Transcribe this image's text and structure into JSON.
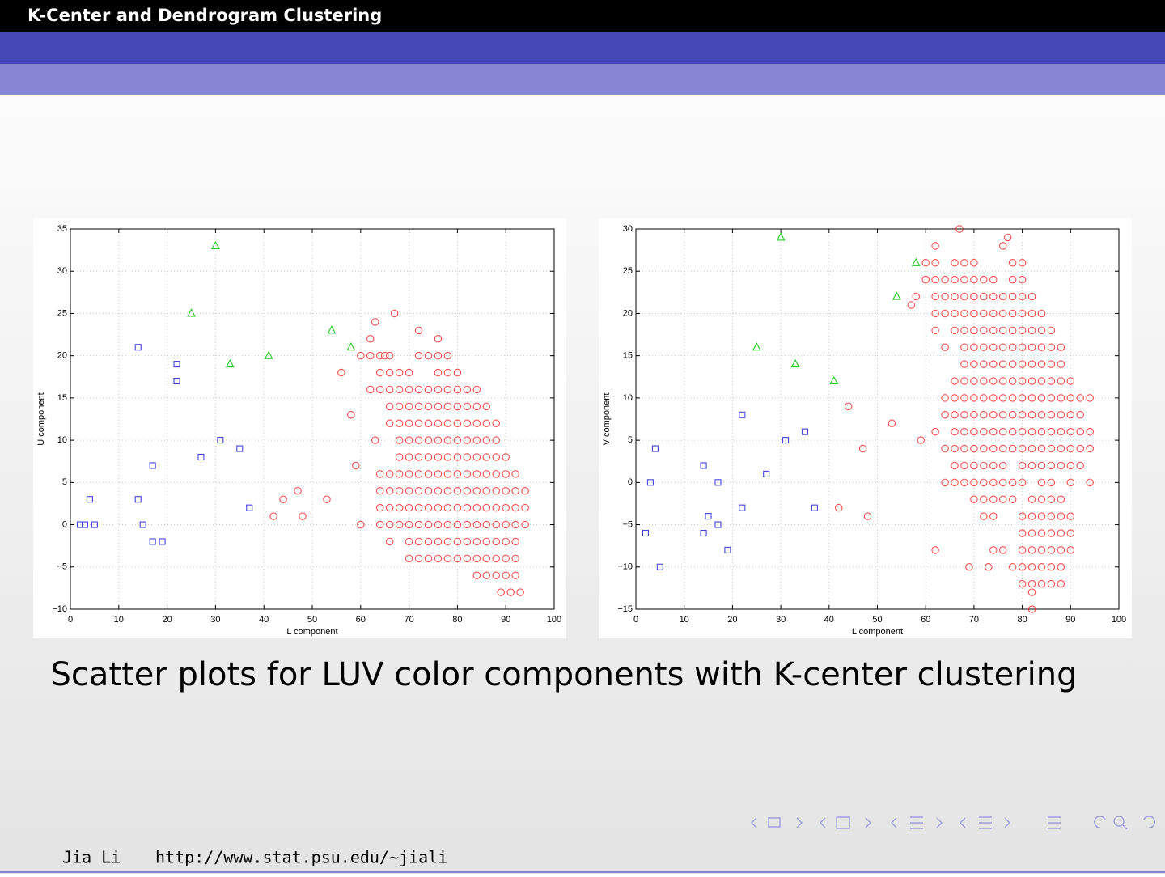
{
  "header": {
    "title": "K-Center and Dendrogram Clustering"
  },
  "chart_data": [
    {
      "type": "scatter",
      "xlabel": "L component",
      "ylabel": "U component",
      "xlim": [
        0,
        100
      ],
      "ylim": [
        -10,
        35
      ],
      "xticks": [
        0,
        10,
        20,
        30,
        40,
        50,
        60,
        70,
        80,
        90,
        100
      ],
      "yticks": [
        {
          "value": -10,
          "label": "−10"
        },
        {
          "value": -5,
          "label": "−5"
        },
        0,
        5,
        10,
        15,
        20,
        25,
        30,
        35
      ],
      "grid": true,
      "series": [
        {
          "color": "#ff2020",
          "marker": "circle",
          "x": [
            62,
            76,
            60,
            62,
            64,
            66,
            72,
            74,
            76,
            78,
            64,
            66,
            68,
            70,
            76,
            78,
            80,
            62,
            64,
            66,
            68,
            70,
            72,
            74,
            76,
            78,
            80,
            82,
            84,
            66,
            68,
            70,
            72,
            74,
            76,
            78,
            80,
            82,
            84,
            86,
            66,
            68,
            70,
            72,
            74,
            76,
            78,
            80,
            82,
            84,
            86,
            88,
            68,
            70,
            72,
            74,
            76,
            78,
            80,
            82,
            84,
            86,
            88,
            68,
            70,
            72,
            74,
            76,
            78,
            80,
            82,
            84,
            86,
            88,
            90,
            64,
            66,
            68,
            70,
            72,
            74,
            76,
            78,
            80,
            82,
            84,
            86,
            88,
            90,
            92,
            64,
            66,
            68,
            70,
            72,
            74,
            76,
            78,
            80,
            82,
            84,
            86,
            88,
            90,
            92,
            94,
            64,
            66,
            68,
            70,
            72,
            74,
            76,
            78,
            80,
            82,
            84,
            86,
            88,
            90,
            92,
            94,
            60,
            64,
            66,
            68,
            70,
            72,
            74,
            76,
            78,
            80,
            82,
            84,
            86,
            88,
            90,
            92,
            94,
            66,
            70,
            72,
            74,
            76,
            78,
            80,
            82,
            84,
            86,
            88,
            90,
            92,
            70,
            72,
            74,
            76,
            78,
            80,
            82,
            84,
            86,
            88,
            90,
            92,
            84,
            86,
            88,
            90,
            92,
            89,
            91,
            93,
            42,
            44,
            47,
            48,
            53,
            56,
            58,
            59,
            63,
            67,
            72,
            63,
            65
          ],
          "values": [
            22,
            22,
            20,
            20,
            20,
            20,
            20,
            20,
            20,
            20,
            18,
            18,
            18,
            18,
            18,
            18,
            18,
            16,
            16,
            16,
            16,
            16,
            16,
            16,
            16,
            16,
            16,
            16,
            16,
            14,
            14,
            14,
            14,
            14,
            14,
            14,
            14,
            14,
            14,
            14,
            12,
            12,
            12,
            12,
            12,
            12,
            12,
            12,
            12,
            12,
            12,
            12,
            10,
            10,
            10,
            10,
            10,
            10,
            10,
            10,
            10,
            10,
            10,
            8,
            8,
            8,
            8,
            8,
            8,
            8,
            8,
            8,
            8,
            8,
            8,
            6,
            6,
            6,
            6,
            6,
            6,
            6,
            6,
            6,
            6,
            6,
            6,
            6,
            6,
            6,
            4,
            4,
            4,
            4,
            4,
            4,
            4,
            4,
            4,
            4,
            4,
            4,
            4,
            4,
            4,
            4,
            2,
            2,
            2,
            2,
            2,
            2,
            2,
            2,
            2,
            2,
            2,
            2,
            2,
            2,
            2,
            2,
            0,
            0,
            0,
            0,
            0,
            0,
            0,
            0,
            0,
            0,
            0,
            0,
            0,
            0,
            0,
            0,
            0,
            -2,
            -2,
            -2,
            -2,
            -2,
            -2,
            -2,
            -2,
            -2,
            -2,
            -2,
            -2,
            -2,
            -4,
            -4,
            -4,
            -4,
            -4,
            -4,
            -4,
            -4,
            -4,
            -4,
            -4,
            -4,
            -6,
            -6,
            -6,
            -6,
            -6,
            -8,
            -8,
            -8,
            1,
            3,
            4,
            1,
            3,
            18,
            13,
            7,
            24,
            25,
            23,
            10,
            20
          ]
        },
        {
          "color": "#4444dd",
          "marker": "square",
          "x": [
            2,
            3,
            5,
            4,
            14,
            15,
            14,
            17,
            17,
            19,
            22,
            22,
            27,
            31,
            35,
            37
          ],
          "values": [
            0,
            0,
            0,
            3,
            3,
            0,
            21,
            7,
            -2,
            -2,
            19,
            17,
            8,
            10,
            9,
            2
          ]
        },
        {
          "color": "#22cc22",
          "marker": "triangle",
          "x": [
            30,
            25,
            33,
            41,
            54,
            58
          ],
          "values": [
            33,
            25,
            19,
            20,
            23,
            21
          ]
        }
      ]
    },
    {
      "type": "scatter",
      "xlabel": "L component",
      "ylabel": "V component",
      "xlim": [
        0,
        100
      ],
      "ylim": [
        -15,
        30
      ],
      "xticks": [
        0,
        10,
        20,
        30,
        40,
        50,
        60,
        70,
        80,
        90,
        100
      ],
      "yticks": [
        {
          "value": -15,
          "label": "−15"
        },
        {
          "value": -10,
          "label": "−10"
        },
        {
          "value": -5,
          "label": "−5"
        },
        0,
        5,
        10,
        15,
        20,
        25,
        30
      ],
      "grid": true,
      "series": [
        {
          "color": "#ff2020",
          "marker": "circle",
          "x": [
            62,
            60,
            62,
            66,
            68,
            70,
            78,
            80,
            60,
            62,
            64,
            66,
            68,
            70,
            72,
            74,
            78,
            80,
            58,
            62,
            64,
            66,
            68,
            70,
            72,
            74,
            76,
            78,
            80,
            82,
            62,
            64,
            66,
            68,
            70,
            72,
            74,
            76,
            78,
            80,
            82,
            84,
            62,
            66,
            68,
            70,
            72,
            74,
            76,
            78,
            80,
            82,
            84,
            86,
            64,
            68,
            70,
            72,
            74,
            76,
            78,
            80,
            82,
            84,
            86,
            88,
            68,
            70,
            72,
            74,
            76,
            78,
            80,
            82,
            84,
            86,
            88,
            66,
            68,
            70,
            72,
            74,
            76,
            78,
            80,
            82,
            84,
            86,
            88,
            90,
            64,
            66,
            68,
            70,
            72,
            74,
            76,
            78,
            80,
            82,
            84,
            86,
            88,
            90,
            92,
            94,
            64,
            66,
            68,
            70,
            72,
            74,
            76,
            78,
            80,
            82,
            84,
            86,
            88,
            90,
            92,
            62,
            66,
            68,
            70,
            72,
            74,
            76,
            78,
            80,
            82,
            84,
            86,
            88,
            90,
            92,
            94,
            64,
            66,
            68,
            70,
            72,
            74,
            76,
            78,
            80,
            82,
            84,
            86,
            88,
            90,
            92,
            94,
            66,
            68,
            70,
            72,
            74,
            76,
            80,
            82,
            84,
            86,
            88,
            90,
            92,
            64,
            66,
            68,
            70,
            72,
            74,
            76,
            78,
            80,
            84,
            86,
            90,
            94,
            70,
            72,
            74,
            76,
            78,
            82,
            84,
            86,
            88,
            72,
            74,
            80,
            82,
            84,
            86,
            88,
            90,
            80,
            82,
            84,
            86,
            88,
            90,
            74,
            76,
            80,
            82,
            84,
            86,
            88,
            90,
            69,
            73,
            78,
            80,
            82,
            84,
            86,
            88,
            80,
            82,
            84,
            86,
            88,
            82,
            44,
            47,
            42,
            48,
            53,
            57,
            59,
            62,
            67,
            76,
            77,
            82
          ],
          "values": [
            28,
            26,
            26,
            26,
            26,
            26,
            26,
            26,
            24,
            24,
            24,
            24,
            24,
            24,
            24,
            24,
            24,
            24,
            22,
            22,
            22,
            22,
            22,
            22,
            22,
            22,
            22,
            22,
            22,
            22,
            20,
            20,
            20,
            20,
            20,
            20,
            20,
            20,
            20,
            20,
            20,
            20,
            18,
            18,
            18,
            18,
            18,
            18,
            18,
            18,
            18,
            18,
            18,
            18,
            16,
            16,
            16,
            16,
            16,
            16,
            16,
            16,
            16,
            16,
            16,
            16,
            14,
            14,
            14,
            14,
            14,
            14,
            14,
            14,
            14,
            14,
            14,
            12,
            12,
            12,
            12,
            12,
            12,
            12,
            12,
            12,
            12,
            12,
            12,
            12,
            10,
            10,
            10,
            10,
            10,
            10,
            10,
            10,
            10,
            10,
            10,
            10,
            10,
            10,
            10,
            10,
            8,
            8,
            8,
            8,
            8,
            8,
            8,
            8,
            8,
            8,
            8,
            8,
            8,
            8,
            8,
            6,
            6,
            6,
            6,
            6,
            6,
            6,
            6,
            6,
            6,
            6,
            6,
            6,
            6,
            6,
            6,
            4,
            4,
            4,
            4,
            4,
            4,
            4,
            4,
            4,
            4,
            4,
            4,
            4,
            4,
            4,
            4,
            2,
            2,
            2,
            2,
            2,
            2,
            2,
            2,
            2,
            2,
            2,
            2,
            2,
            0,
            0,
            0,
            0,
            0,
            0,
            0,
            0,
            0,
            0,
            0,
            0,
            0,
            -2,
            -2,
            -2,
            -2,
            -2,
            -2,
            -2,
            -2,
            -2,
            -4,
            -4,
            -4,
            -4,
            -4,
            -4,
            -4,
            -4,
            -6,
            -6,
            -6,
            -6,
            -6,
            -6,
            -8,
            -8,
            -8,
            -8,
            -8,
            -8,
            -8,
            -8,
            -10,
            -10,
            -10,
            -10,
            -10,
            -10,
            -10,
            -10,
            -12,
            -12,
            -12,
            -12,
            -12,
            -13,
            9,
            4,
            -3,
            -4,
            7,
            21,
            5,
            -8,
            30,
            28,
            29,
            -15
          ]
        },
        {
          "color": "#4444dd",
          "marker": "square",
          "x": [
            2,
            3,
            4,
            5,
            14,
            14,
            15,
            17,
            17,
            19,
            22,
            22,
            27,
            31,
            35,
            37
          ],
          "values": [
            -6,
            0,
            4,
            -10,
            2,
            -6,
            -4,
            0,
            -5,
            -8,
            8,
            -3,
            1,
            5,
            6,
            -3
          ]
        },
        {
          "color": "#22cc22",
          "marker": "triangle",
          "x": [
            30,
            25,
            33,
            41,
            54,
            58
          ],
          "values": [
            29,
            16,
            14,
            12,
            22,
            26
          ]
        }
      ]
    }
  ],
  "caption": "Scatter plots for LUV color components with K-center clustering",
  "footer": {
    "author": "Jia Li",
    "url": "http://www.stat.psu.edu/∼jiali"
  }
}
